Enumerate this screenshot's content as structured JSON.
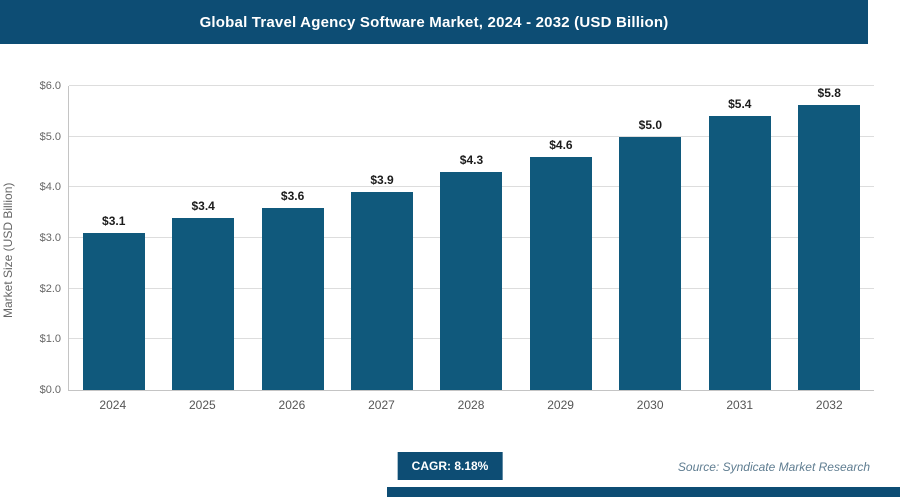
{
  "header": {
    "title": "Global Travel Agency Software Market, 2024 - 2032 (USD Billion)"
  },
  "chart_data": {
    "type": "bar",
    "title": "Global Travel Agency Software Market, 2024 - 2032 (USD Billion)",
    "categories": [
      "2024",
      "2025",
      "2026",
      "2027",
      "2028",
      "2029",
      "2030",
      "2031",
      "2032"
    ],
    "values": [
      3.1,
      3.4,
      3.6,
      3.9,
      4.3,
      4.6,
      5.0,
      5.4,
      5.8
    ],
    "bar_labels": [
      "$3.1",
      "$3.4",
      "$3.6",
      "$3.9",
      "$4.3",
      "$4.6",
      "$5.0",
      "$5.4",
      "$5.8"
    ],
    "xlabel": "",
    "ylabel": "Market Size (USD Billion)",
    "ylim": [
      0,
      6
    ],
    "yticks": [
      {
        "value": 0,
        "label": "$0.0"
      },
      {
        "value": 1,
        "label": "$1.0"
      },
      {
        "value": 2,
        "label": "$2.0"
      },
      {
        "value": 3,
        "label": "$3.0"
      },
      {
        "value": 4,
        "label": "$4.0"
      },
      {
        "value": 5,
        "label": "$5.0"
      },
      {
        "value": 6,
        "label": "$6.0"
      }
    ],
    "grid": "horizontal",
    "legend": "none"
  },
  "footer": {
    "cagr": "CAGR: 8.18%",
    "source": "Source: Syndicate Market Research"
  },
  "colors": {
    "navy": "#0d4d74",
    "bar": "#10597c",
    "grid": "#dddddd",
    "axis": "#c4c4c4",
    "source_text": "#5f7d91"
  }
}
